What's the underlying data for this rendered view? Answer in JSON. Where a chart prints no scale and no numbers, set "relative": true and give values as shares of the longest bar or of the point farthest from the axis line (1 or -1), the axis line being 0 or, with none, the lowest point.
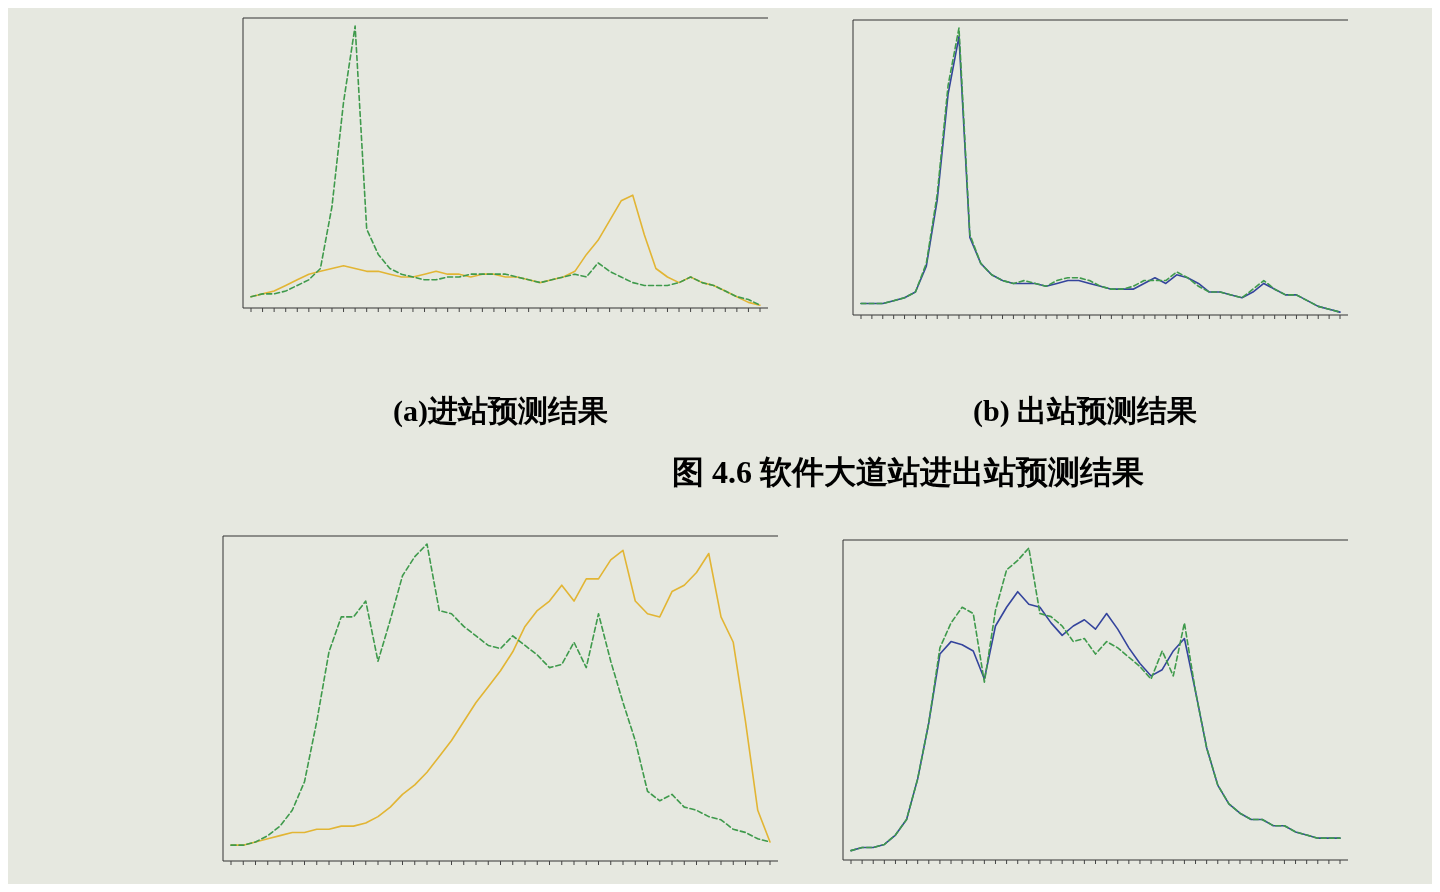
{
  "chart_data": [
    {
      "type": "line",
      "relative": true,
      "categories": [
        null,
        null,
        null,
        null,
        null,
        null,
        null,
        null,
        null,
        null,
        null,
        null,
        null,
        null,
        null,
        null,
        null,
        null,
        null,
        null,
        null,
        null,
        null,
        null,
        null,
        null,
        null,
        null,
        null,
        null,
        null,
        null,
        null,
        null,
        null,
        null,
        null,
        null,
        null,
        null,
        null,
        null,
        null,
        null,
        null
      ],
      "series": [
        {
          "color": "#e2b534",
          "line_style": "solid",
          "values": [
            0.04,
            0.05,
            0.06,
            0.08,
            0.1,
            0.12,
            0.13,
            0.14,
            0.15,
            0.14,
            0.13,
            0.13,
            0.12,
            0.11,
            0.11,
            0.12,
            0.13,
            0.12,
            0.12,
            0.11,
            0.12,
            0.12,
            0.11,
            0.11,
            0.1,
            0.09,
            0.1,
            0.11,
            0.13,
            0.19,
            0.24,
            0.31,
            0.38,
            0.4,
            0.26,
            0.14,
            0.11,
            0.09,
            0.11,
            0.09,
            0.08,
            0.06,
            0.04,
            0.02,
            0.01
          ]
        },
        {
          "color": "#3f9a4c",
          "line_style": "dashed",
          "values": [
            0.04,
            0.05,
            0.05,
            0.06,
            0.08,
            0.1,
            0.14,
            0.36,
            0.73,
            1,
            0.28,
            0.19,
            0.14,
            0.12,
            0.11,
            0.1,
            0.1,
            0.11,
            0.11,
            0.12,
            0.12,
            0.12,
            0.12,
            0.11,
            0.1,
            0.09,
            0.1,
            0.11,
            0.12,
            0.11,
            0.16,
            0.13,
            0.11,
            0.09,
            0.08,
            0.08,
            0.08,
            0.09,
            0.11,
            0.09,
            0.08,
            0.06,
            0.04,
            0.03,
            0.01
          ]
        }
      ],
      "annotations": [
        "(a)进站预测结果"
      ]
    },
    {
      "type": "line",
      "relative": true,
      "categories": [
        null,
        null,
        null,
        null,
        null,
        null,
        null,
        null,
        null,
        null,
        null,
        null,
        null,
        null,
        null,
        null,
        null,
        null,
        null,
        null,
        null,
        null,
        null,
        null,
        null,
        null,
        null,
        null,
        null,
        null,
        null,
        null,
        null,
        null,
        null,
        null,
        null,
        null,
        null,
        null,
        null,
        null,
        null,
        null,
        null
      ],
      "series": [
        {
          "color": "#34449c",
          "line_style": "solid",
          "values": [
            0.04,
            0.04,
            0.04,
            0.05,
            0.06,
            0.08,
            0.17,
            0.4,
            0.77,
            0.97,
            0.27,
            0.18,
            0.14,
            0.12,
            0.11,
            0.11,
            0.11,
            0.1,
            0.11,
            0.12,
            0.12,
            0.11,
            0.1,
            0.09,
            0.09,
            0.09,
            0.11,
            0.13,
            0.11,
            0.14,
            0.13,
            0.11,
            0.08,
            0.08,
            0.07,
            0.06,
            0.08,
            0.11,
            0.09,
            0.07,
            0.07,
            0.05,
            0.03,
            0.02,
            0.01
          ]
        },
        {
          "color": "#3f9a4c",
          "line_style": "dashed",
          "values": [
            0.04,
            0.04,
            0.04,
            0.05,
            0.06,
            0.08,
            0.18,
            0.42,
            0.8,
            1,
            0.28,
            0.18,
            0.14,
            0.12,
            0.11,
            0.12,
            0.11,
            0.1,
            0.12,
            0.13,
            0.13,
            0.12,
            0.1,
            0.09,
            0.09,
            0.1,
            0.12,
            0.12,
            0.12,
            0.15,
            0.13,
            0.1,
            0.08,
            0.08,
            0.07,
            0.06,
            0.09,
            0.12,
            0.09,
            0.07,
            0.07,
            0.05,
            0.03,
            0.02,
            0.01
          ]
        }
      ],
      "annotations": [
        "(b) 出站预测结果",
        "图 4.6 软件大道站进出站预测结果"
      ]
    },
    {
      "type": "line",
      "relative": true,
      "categories": [
        null,
        null,
        null,
        null,
        null,
        null,
        null,
        null,
        null,
        null,
        null,
        null,
        null,
        null,
        null,
        null,
        null,
        null,
        null,
        null,
        null,
        null,
        null,
        null,
        null,
        null,
        null,
        null,
        null,
        null,
        null,
        null,
        null,
        null,
        null,
        null,
        null,
        null,
        null,
        null,
        null,
        null,
        null,
        null,
        null
      ],
      "series": [
        {
          "color": "#e2b534",
          "line_style": "solid",
          "values": [
            0.05,
            0.05,
            0.06,
            0.07,
            0.08,
            0.09,
            0.09,
            0.1,
            0.1,
            0.11,
            0.11,
            0.12,
            0.14,
            0.17,
            0.21,
            0.24,
            0.28,
            0.33,
            0.38,
            0.44,
            0.5,
            0.55,
            0.6,
            0.66,
            0.74,
            0.79,
            0.82,
            0.87,
            0.82,
            0.89,
            0.89,
            0.95,
            0.98,
            0.82,
            0.78,
            0.77,
            0.85,
            0.87,
            0.91,
            0.97,
            0.77,
            0.69,
            0.44,
            0.16,
            0.06
          ]
        },
        {
          "color": "#3f9a4c",
          "line_style": "dashed",
          "values": [
            0.05,
            0.05,
            0.06,
            0.08,
            0.11,
            0.16,
            0.25,
            0.44,
            0.66,
            0.77,
            0.77,
            0.82,
            0.63,
            0.76,
            0.9,
            0.96,
            1,
            0.79,
            0.78,
            0.74,
            0.71,
            0.68,
            0.67,
            0.71,
            0.68,
            0.65,
            0.61,
            0.62,
            0.69,
            0.61,
            0.78,
            0.63,
            0.5,
            0.38,
            0.22,
            0.19,
            0.21,
            0.17,
            0.16,
            0.14,
            0.13,
            0.1,
            0.09,
            0.07,
            0.06
          ]
        }
      ]
    },
    {
      "type": "line",
      "relative": true,
      "categories": [
        null,
        null,
        null,
        null,
        null,
        null,
        null,
        null,
        null,
        null,
        null,
        null,
        null,
        null,
        null,
        null,
        null,
        null,
        null,
        null,
        null,
        null,
        null,
        null,
        null,
        null,
        null,
        null,
        null,
        null,
        null,
        null,
        null,
        null,
        null,
        null,
        null,
        null,
        null,
        null,
        null,
        null,
        null,
        null,
        null
      ],
      "series": [
        {
          "color": "#34449c",
          "line_style": "solid",
          "values": [
            0.03,
            0.04,
            0.04,
            0.05,
            0.08,
            0.13,
            0.26,
            0.44,
            0.66,
            0.7,
            0.69,
            0.67,
            0.58,
            0.75,
            0.81,
            0.86,
            0.82,
            0.81,
            0.76,
            0.72,
            0.75,
            0.77,
            0.74,
            0.79,
            0.74,
            0.68,
            0.63,
            0.59,
            0.61,
            0.67,
            0.71,
            0.54,
            0.36,
            0.24,
            0.18,
            0.15,
            0.13,
            0.13,
            0.11,
            0.11,
            0.09,
            0.08,
            0.07,
            0.07,
            0.07
          ]
        },
        {
          "color": "#3f9a4c",
          "line_style": "dashed",
          "values": [
            0.03,
            0.04,
            0.04,
            0.05,
            0.08,
            0.13,
            0.26,
            0.44,
            0.68,
            0.76,
            0.81,
            0.79,
            0.57,
            0.8,
            0.93,
            0.96,
            1,
            0.79,
            0.78,
            0.75,
            0.7,
            0.71,
            0.66,
            0.7,
            0.68,
            0.65,
            0.62,
            0.58,
            0.67,
            0.59,
            0.76,
            0.54,
            0.36,
            0.24,
            0.18,
            0.15,
            0.13,
            0.13,
            0.11,
            0.11,
            0.09,
            0.08,
            0.07,
            0.07,
            0.07
          ]
        }
      ]
    }
  ]
}
